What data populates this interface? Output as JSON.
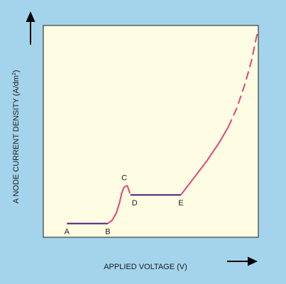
{
  "colors": {
    "background": "#a4d4ec",
    "plot_area": "#fefde3",
    "segment_flat": "#4a1a7a",
    "segment_curve": "#e0457b",
    "axis_arrow": "#000000"
  },
  "chart_data": {
    "type": "line",
    "title": "",
    "xlabel": "APPLIED VOLTAGE (V)",
    "ylabel": "A NODE CURRENT DENSITY (A/dm²)",
    "ylabel_main": "A NODE CURRENT DENSITY (A/dm",
    "ylabel_sup": "2",
    "ylabel_end": ")",
    "xlim": [
      0,
      100
    ],
    "ylim": [
      0,
      100
    ],
    "grid": false,
    "ticks": false,
    "series": [
      {
        "segment": "A-B",
        "style": "solid",
        "color": "#4a1a7a",
        "points": [
          [
            11,
            6.5
          ],
          [
            30,
            6.5
          ]
        ]
      },
      {
        "segment": "B-C",
        "style": "solid",
        "color": "#e0457b",
        "points": [
          [
            30,
            6.5
          ],
          [
            32,
            8
          ],
          [
            34,
            11.5
          ],
          [
            35.5,
            16.5
          ],
          [
            36.5,
            21
          ],
          [
            37.5,
            23.5
          ],
          [
            39,
            24.5
          ]
        ]
      },
      {
        "segment": "C-D",
        "style": "dashed",
        "color": "#e0457b",
        "points": [
          [
            39,
            24.5
          ],
          [
            39.7,
            22.5
          ],
          [
            40.5,
            20
          ]
        ]
      },
      {
        "segment": "D-E",
        "style": "solid",
        "color": "#4a1a7a",
        "points": [
          [
            40.5,
            20
          ],
          [
            64,
            20
          ]
        ]
      },
      {
        "segment": "E-curve",
        "style": "solid",
        "color": "#e0457b",
        "points": [
          [
            64,
            20
          ],
          [
            70,
            28
          ],
          [
            76,
            36
          ],
          [
            82,
            45
          ],
          [
            86,
            52
          ]
        ]
      },
      {
        "segment": "curve-top",
        "style": "dashed",
        "color": "#e0457b",
        "points": [
          [
            86,
            52
          ],
          [
            90,
            61
          ],
          [
            94,
            73
          ],
          [
            97,
            84
          ],
          [
            99,
            94
          ],
          [
            100,
            98
          ]
        ]
      }
    ],
    "annotations": [
      {
        "label": "A",
        "x": 11,
        "y": 6.5,
        "pos": "below"
      },
      {
        "label": "B",
        "x": 30,
        "y": 6.5,
        "pos": "below"
      },
      {
        "label": "C",
        "x": 38,
        "y": 24.5,
        "pos": "above-left"
      },
      {
        "label": "D",
        "x": 40.5,
        "y": 20,
        "pos": "below-right"
      },
      {
        "label": "E",
        "x": 64,
        "y": 20,
        "pos": "below"
      }
    ]
  }
}
